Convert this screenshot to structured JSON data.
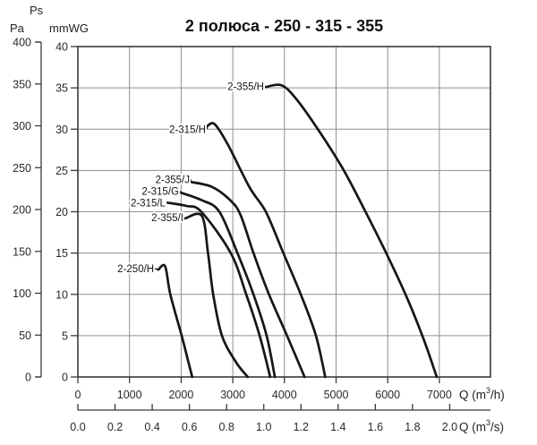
{
  "title": "2 полюса - 250 - 315 - 355",
  "colors": {
    "curve": "#161616",
    "grid": "#8f8f8f",
    "border": "#3a3a3a",
    "text": "#222222"
  },
  "chart_data": {
    "type": "line",
    "title": "2 полюса - 250 - 315 - 355",
    "grid": true,
    "legend_position": "none",
    "y_axis_pa": {
      "title": "Ps",
      "unit": "Pa",
      "ticks": [
        400,
        350,
        300,
        250,
        200,
        150,
        100,
        50,
        0
      ],
      "range": [
        0,
        400
      ]
    },
    "y_axis_mmwg": {
      "unit": "mmWG",
      "ticks": [
        40,
        35,
        30,
        25,
        20,
        15,
        10,
        5,
        0
      ],
      "range": [
        0,
        40
      ]
    },
    "x_axis_m3h": {
      "unit_prefix": "Q (m",
      "unit_sup": "3",
      "unit_suffix": "/h)",
      "ticks": [
        0,
        1000,
        2000,
        3000,
        4000,
        5000,
        6000,
        7000
      ],
      "range": [
        0,
        7990
      ]
    },
    "x_axis_m3s": {
      "unit_prefix": "Q (m",
      "unit_sup": "3",
      "unit_suffix": "/s)",
      "tick_labels": [
        "0.0",
        "0.2",
        "0.4",
        "0.6",
        "0.8",
        "1.0",
        "1.2",
        "1.4",
        "1.6",
        "1.8",
        "2.0"
      ]
    },
    "series": [
      {
        "name": "2-355/H",
        "label_q": 3605,
        "label_p": 35.2,
        "points": [
          [
            3640,
            35.1
          ],
          [
            3950,
            35.3
          ],
          [
            4250,
            33.5
          ],
          [
            4700,
            29.5
          ],
          [
            5150,
            25.0
          ],
          [
            5570,
            20.0
          ],
          [
            5970,
            15.0
          ],
          [
            6380,
            9.5
          ],
          [
            6700,
            4.5
          ],
          [
            6950,
            0
          ]
        ]
      },
      {
        "name": "2-315/H",
        "label_q": 2478,
        "label_p": 30.0,
        "points": [
          [
            2510,
            30.4
          ],
          [
            2650,
            30.6
          ],
          [
            2900,
            28.2
          ],
          [
            3330,
            22.9
          ],
          [
            3640,
            20.0
          ],
          [
            3980,
            15.0
          ],
          [
            4330,
            9.8
          ],
          [
            4610,
            5.0
          ],
          [
            4790,
            0
          ]
        ]
      },
      {
        "name": "2-355/J",
        "label_q": 2166,
        "label_p": 23.9,
        "points": [
          [
            2200,
            23.6
          ],
          [
            2600,
            23.0
          ],
          [
            2950,
            21.4
          ],
          [
            3150,
            19.6
          ],
          [
            3400,
            15.0
          ],
          [
            3700,
            10.0
          ],
          [
            4050,
            5.0
          ],
          [
            4390,
            0
          ]
        ]
      },
      {
        "name": "2-315/G",
        "label_q": 1958,
        "label_p": 22.5,
        "points": [
          [
            2000,
            22.3
          ],
          [
            2400,
            21.4
          ],
          [
            2740,
            20.0
          ],
          [
            3090,
            15.0
          ],
          [
            3400,
            10.0
          ],
          [
            3655,
            5.0
          ],
          [
            3815,
            0
          ]
        ]
      },
      {
        "name": "2-315/L",
        "label_q": 1698,
        "label_p": 21.1,
        "points": [
          [
            1740,
            21.1
          ],
          [
            2100,
            20.7
          ],
          [
            2390,
            20.0
          ],
          [
            2960,
            15.0
          ],
          [
            3260,
            10.0
          ],
          [
            3520,
            5.0
          ],
          [
            3725,
            0
          ]
        ]
      },
      {
        "name": "2-355/I",
        "label_q": 2045,
        "label_p": 19.3,
        "points": [
          [
            2080,
            19.2
          ],
          [
            2400,
            19.5
          ],
          [
            2520,
            15.0
          ],
          [
            2620,
            10.0
          ],
          [
            2790,
            5.0
          ],
          [
            3060,
            1.8
          ],
          [
            3290,
            0
          ]
        ]
      },
      {
        "name": "2-250/H",
        "label_q": 1475,
        "label_p": 13.1,
        "points": [
          [
            1560,
            13.0
          ],
          [
            1690,
            13.4
          ],
          [
            1790,
            10.0
          ],
          [
            2010,
            5.0
          ],
          [
            2140,
            1.8
          ],
          [
            2215,
            0
          ]
        ]
      }
    ]
  }
}
